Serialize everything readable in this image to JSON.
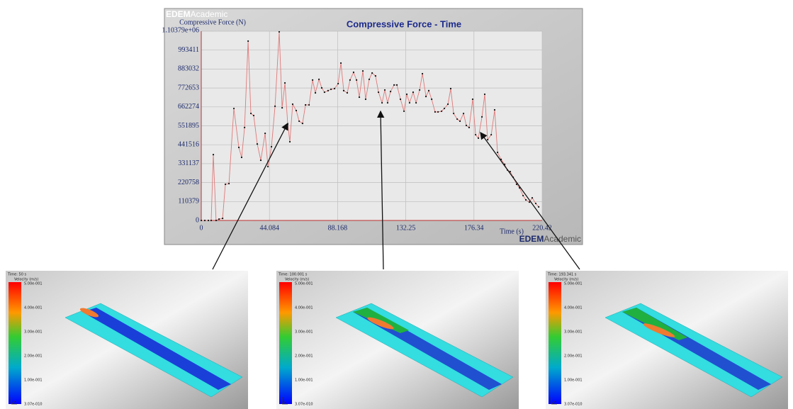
{
  "chart_data": {
    "type": "line",
    "brand": [
      "EDEM",
      "Academic"
    ],
    "title": "Compressive Force - Time",
    "y_label": "Compressive Force (N)",
    "x_label": "Time (s)",
    "xlim": [
      0,
      220.42
    ],
    "ylim": [
      0,
      1103790
    ],
    "xticks": [
      0,
      44.084,
      88.168,
      132.25,
      176.34,
      220.42
    ],
    "yticks": [
      0,
      110379,
      220758,
      331137,
      441516,
      551895,
      662274,
      772653,
      883032,
      993411,
      {
        "value": 1103790,
        "label": "1.10379e+06"
      }
    ],
    "grid": true,
    "line_color": "#e07878",
    "marker_color": "#111111",
    "x": [
      0,
      2.3,
      4.6,
      6.4,
      7.8,
      9.6,
      11.5,
      13.8,
      15.6,
      17.9,
      21.1,
      24.3,
      26.1,
      28.0,
      30.3,
      32.1,
      33.9,
      36.2,
      38.5,
      41.3,
      43.1,
      45.4,
      47.7,
      50.4,
      52.3,
      54.1,
      55.9,
      57.3,
      59.1,
      61.4,
      63.3,
      65.5,
      67.4,
      69.7,
      72.0,
      73.8,
      76.1,
      77.9,
      79.7,
      82.0,
      83.9,
      86.2,
      88.5,
      90.3,
      92.1,
      94.4,
      96.2,
      98.5,
      100.4,
      102.2,
      104.5,
      106.3,
      108.6,
      110.5,
      112.7,
      114.6,
      116.9,
      118.7,
      120.5,
      122.4,
      124.7,
      126.5,
      128.8,
      131.1,
      132.9,
      134.7,
      137.0,
      138.9,
      141.2,
      143.0,
      145.3,
      147.1,
      149.0,
      151.2,
      153.1,
      155.4,
      157.2,
      159.5,
      161.3,
      163.2,
      165.5,
      167.3,
      169.6,
      171.4,
      173.2,
      175.5,
      177.4,
      179.2,
      181.5,
      183.3,
      185.2,
      187.5,
      189.7,
      191.6,
      193.9,
      196.2,
      198.0,
      199.8,
      201.7,
      203.9,
      205.8,
      208.1,
      209.9,
      212.2,
      214.0,
      216.3,
      218.2
    ],
    "values": [
      0,
      0,
      0,
      0,
      384000,
      0,
      8000,
      12000,
      211000,
      215000,
      653000,
      426000,
      368000,
      542000,
      1046000,
      624000,
      612000,
      446000,
      351000,
      508000,
      314000,
      430000,
      666000,
      1100000,
      657000,
      802000,
      562000,
      459000,
      678000,
      641000,
      579000,
      566000,
      674000,
      674000,
      819000,
      744000,
      823000,
      773000,
      748000,
      757000,
      765000,
      769000,
      798000,
      918000,
      757000,
      744000,
      819000,
      864000,
      819000,
      719000,
      872000,
      707000,
      823000,
      860000,
      843000,
      748000,
      686000,
      761000,
      686000,
      752000,
      790000,
      790000,
      707000,
      637000,
      736000,
      686000,
      748000,
      686000,
      761000,
      856000,
      723000,
      757000,
      707000,
      633000,
      633000,
      637000,
      653000,
      678000,
      769000,
      624000,
      591000,
      579000,
      624000,
      554000,
      542000,
      707000,
      500000,
      480000,
      604000,
      736000,
      471000,
      500000,
      645000,
      397000,
      356000,
      327000,
      294000,
      285000,
      252000,
      211000,
      190000,
      145000,
      120000,
      107000,
      132000,
      99000,
      79000
    ]
  },
  "panels": [
    {
      "time": "Time: 50 s",
      "legend_title": "Velocity (m/s)",
      "scale": [
        "5.00e-001",
        "4.00e-001",
        "3.00e-001",
        "2.00e-001",
        "1.00e-001",
        "3.07e-010"
      ]
    },
    {
      "time": "Time: 100.001 s",
      "legend_title": "Velocity (m/s)",
      "scale": [
        "5.00e-001",
        "4.00e-001",
        "3.00e-001",
        "2.00e-001",
        "1.00e-001",
        "3.07e-010"
      ]
    },
    {
      "time": "Time: 193.341 s",
      "legend_title": "Velocity (m/s)",
      "scale": [
        "5.00e-001",
        "4.00e-001",
        "3.00e-001",
        "2.00e-001",
        "1.00e-001",
        "3.07e-010"
      ]
    }
  ]
}
